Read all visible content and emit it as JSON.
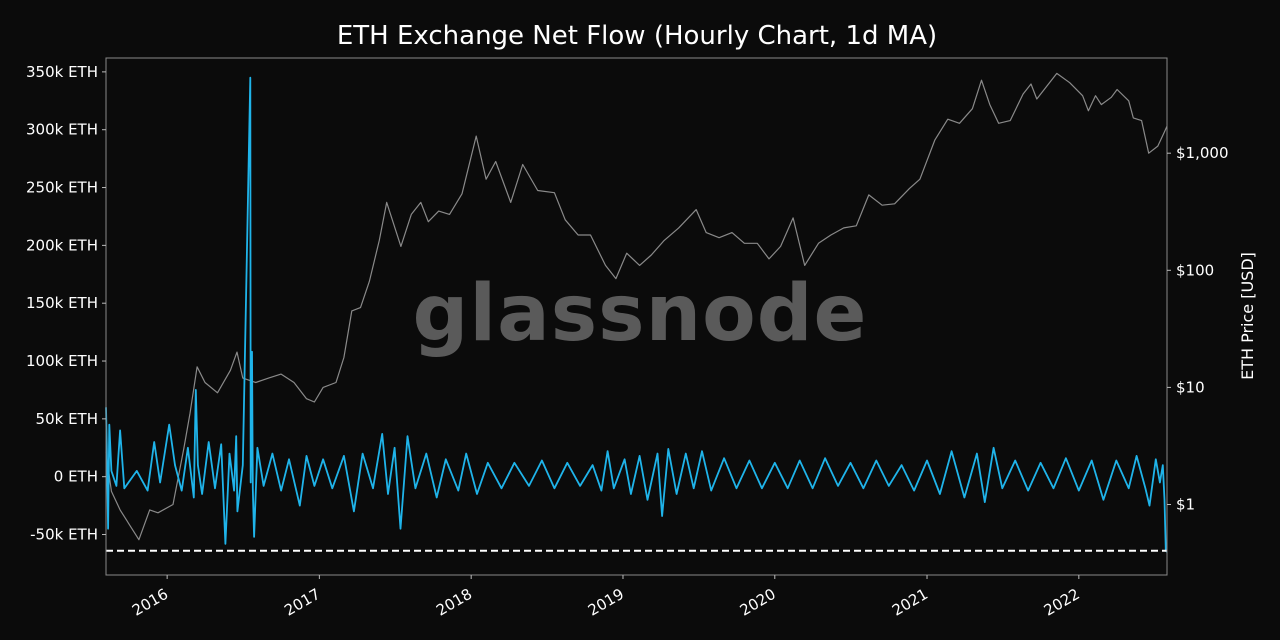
{
  "chart_data": {
    "type": "line",
    "title": "ETH Exchange Net Flow (Hourly Chart, 1d MA)",
    "watermark": "glassnode",
    "left_axis": {
      "ticks": [
        350000,
        300000,
        250000,
        200000,
        150000,
        100000,
        50000,
        0,
        -50000
      ],
      "tick_labels": [
        "350k ETH",
        "300k ETH",
        "250k ETH",
        "200k ETH",
        "150k ETH",
        "100k ETH",
        "50k ETH",
        "0 ETH",
        "-50k ETH"
      ],
      "ylim": [
        -85000,
        362000
      ]
    },
    "right_axis": {
      "label": "ETH Price [USD]",
      "scale": "log",
      "ticks": [
        1,
        10,
        100,
        1000
      ],
      "tick_labels": [
        "$1",
        "$10",
        "$100",
        "$1,000"
      ],
      "ylim": [
        0.25,
        6500
      ]
    },
    "x_axis": {
      "xlim": [
        "2015-08-07",
        "2022-08-01"
      ],
      "ticks": [
        "2016-01-01",
        "2017-01-01",
        "2018-01-01",
        "2019-01-01",
        "2020-01-01",
        "2021-01-01",
        "2022-01-01"
      ],
      "tick_labels": [
        "2016",
        "2017",
        "2018",
        "2019",
        "2020",
        "2021",
        "2022"
      ]
    },
    "reference_line": {
      "value": -64000,
      "style": "dashed",
      "color": "#ffffff"
    },
    "series": [
      {
        "axis": "right",
        "color": "#8a8a8a",
        "points": [
          [
            "2015-08-07",
            2.8
          ],
          [
            "2015-08-20",
            1.3
          ],
          [
            "2015-09-10",
            0.9
          ],
          [
            "2015-10-05",
            0.65
          ],
          [
            "2015-10-25",
            0.5
          ],
          [
            "2015-11-20",
            0.9
          ],
          [
            "2015-12-10",
            0.85
          ],
          [
            "2016-01-15",
            1.0
          ],
          [
            "2016-02-10",
            3.0
          ],
          [
            "2016-02-25",
            6.0
          ],
          [
            "2016-03-13",
            15.0
          ],
          [
            "2016-04-01",
            11.0
          ],
          [
            "2016-05-01",
            9.0
          ],
          [
            "2016-06-01",
            14.0
          ],
          [
            "2016-06-17",
            20.0
          ],
          [
            "2016-07-01",
            12.0
          ],
          [
            "2016-08-01",
            11.0
          ],
          [
            "2016-09-01",
            12.0
          ],
          [
            "2016-10-01",
            13.0
          ],
          [
            "2016-11-01",
            11.0
          ],
          [
            "2016-12-01",
            8.0
          ],
          [
            "2016-12-20",
            7.5
          ],
          [
            "2017-01-10",
            10.0
          ],
          [
            "2017-02-10",
            11.0
          ],
          [
            "2017-03-01",
            18.0
          ],
          [
            "2017-03-20",
            45.0
          ],
          [
            "2017-04-10",
            48.0
          ],
          [
            "2017-05-01",
            80.0
          ],
          [
            "2017-05-25",
            180.0
          ],
          [
            "2017-06-12",
            380.0
          ],
          [
            "2017-07-16",
            160.0
          ],
          [
            "2017-08-10",
            300.0
          ],
          [
            "2017-09-02",
            380.0
          ],
          [
            "2017-09-20",
            260.0
          ],
          [
            "2017-10-15",
            320.0
          ],
          [
            "2017-11-10",
            300.0
          ],
          [
            "2017-12-10",
            450.0
          ],
          [
            "2018-01-13",
            1400.0
          ],
          [
            "2018-02-06",
            600.0
          ],
          [
            "2018-03-01",
            850.0
          ],
          [
            "2018-04-06",
            380.0
          ],
          [
            "2018-05-05",
            800.0
          ],
          [
            "2018-06-10",
            480.0
          ],
          [
            "2018-07-20",
            460.0
          ],
          [
            "2018-08-15",
            270.0
          ],
          [
            "2018-09-15",
            200.0
          ],
          [
            "2018-10-15",
            200.0
          ],
          [
            "2018-11-20",
            110.0
          ],
          [
            "2018-12-15",
            85.0
          ],
          [
            "2019-01-10",
            140.0
          ],
          [
            "2019-02-10",
            110.0
          ],
          [
            "2019-03-10",
            135.0
          ],
          [
            "2019-04-10",
            180.0
          ],
          [
            "2019-05-15",
            230.0
          ],
          [
            "2019-06-26",
            330.0
          ],
          [
            "2019-07-20",
            210.0
          ],
          [
            "2019-08-20",
            190.0
          ],
          [
            "2019-09-20",
            210.0
          ],
          [
            "2019-10-20",
            170.0
          ],
          [
            "2019-11-20",
            170.0
          ],
          [
            "2019-12-18",
            125.0
          ],
          [
            "2020-01-15",
            160.0
          ],
          [
            "2020-02-14",
            280.0
          ],
          [
            "2020-03-13",
            110.0
          ],
          [
            "2020-04-15",
            170.0
          ],
          [
            "2020-05-15",
            200.0
          ],
          [
            "2020-06-15",
            230.0
          ],
          [
            "2020-07-15",
            240.0
          ],
          [
            "2020-08-14",
            440.0
          ],
          [
            "2020-09-15",
            360.0
          ],
          [
            "2020-10-15",
            370.0
          ],
          [
            "2020-11-20",
            500.0
          ],
          [
            "2020-12-15",
            600.0
          ],
          [
            "2021-01-20",
            1300.0
          ],
          [
            "2021-02-20",
            1950.0
          ],
          [
            "2021-03-20",
            1800.0
          ],
          [
            "2021-04-20",
            2400.0
          ],
          [
            "2021-05-12",
            4200.0
          ],
          [
            "2021-06-01",
            2600.0
          ],
          [
            "2021-06-22",
            1800.0
          ],
          [
            "2021-07-20",
            1900.0
          ],
          [
            "2021-08-20",
            3200.0
          ],
          [
            "2021-09-08",
            3900.0
          ],
          [
            "2021-09-22",
            2900.0
          ],
          [
            "2021-11-09",
            4800.0
          ],
          [
            "2021-12-10",
            4000.0
          ],
          [
            "2022-01-10",
            3100.0
          ],
          [
            "2022-01-24",
            2300.0
          ],
          [
            "2022-02-10",
            3100.0
          ],
          [
            "2022-02-24",
            2600.0
          ],
          [
            "2022-03-20",
            3000.0
          ],
          [
            "2022-04-03",
            3500.0
          ],
          [
            "2022-05-01",
            2800.0
          ],
          [
            "2022-05-12",
            2000.0
          ],
          [
            "2022-06-01",
            1900.0
          ],
          [
            "2022-06-18",
            1000.0
          ],
          [
            "2022-07-10",
            1150.0
          ],
          [
            "2022-07-25",
            1500.0
          ],
          [
            "2022-08-01",
            1700.0
          ]
        ]
      },
      {
        "axis": "left",
        "color": "#1fb4ea",
        "points": [
          [
            "2015-08-07",
            60000
          ],
          [
            "2015-08-09",
            25000
          ],
          [
            "2015-08-12",
            -45000
          ],
          [
            "2015-08-15",
            45000
          ],
          [
            "2015-08-20",
            5000
          ],
          [
            "2015-09-01",
            -8000
          ],
          [
            "2015-09-10",
            40000
          ],
          [
            "2015-09-20",
            -10000
          ],
          [
            "2015-10-20",
            5000
          ],
          [
            "2015-11-15",
            -12000
          ],
          [
            "2015-12-01",
            30000
          ],
          [
            "2015-12-15",
            -5000
          ],
          [
            "2016-01-06",
            45000
          ],
          [
            "2016-01-20",
            10000
          ],
          [
            "2016-02-05",
            -12000
          ],
          [
            "2016-02-20",
            25000
          ],
          [
            "2016-03-05",
            -18000
          ],
          [
            "2016-03-10",
            75000
          ],
          [
            "2016-03-15",
            10000
          ],
          [
            "2016-03-25",
            -15000
          ],
          [
            "2016-04-10",
            30000
          ],
          [
            "2016-04-25",
            -10000
          ],
          [
            "2016-05-10",
            28000
          ],
          [
            "2016-05-20",
            -58000
          ],
          [
            "2016-05-30",
            20000
          ],
          [
            "2016-06-10",
            -12000
          ],
          [
            "2016-06-15",
            35000
          ],
          [
            "2016-06-18",
            -30000
          ],
          [
            "2016-07-01",
            10000
          ],
          [
            "2016-07-19",
            345000
          ],
          [
            "2016-07-20",
            -5000
          ],
          [
            "2016-07-23",
            108000
          ],
          [
            "2016-07-25",
            -10000
          ],
          [
            "2016-07-28",
            -52000
          ],
          [
            "2016-08-05",
            25000
          ],
          [
            "2016-08-20",
            -8000
          ],
          [
            "2016-09-10",
            20000
          ],
          [
            "2016-10-01",
            -12000
          ],
          [
            "2016-10-20",
            15000
          ],
          [
            "2016-11-15",
            -25000
          ],
          [
            "2016-12-01",
            18000
          ],
          [
            "2016-12-20",
            -8000
          ],
          [
            "2017-01-10",
            15000
          ],
          [
            "2017-02-01",
            -10000
          ],
          [
            "2017-03-01",
            18000
          ],
          [
            "2017-03-25",
            -30000
          ],
          [
            "2017-04-15",
            20000
          ],
          [
            "2017-05-10",
            -10000
          ],
          [
            "2017-06-01",
            37000
          ],
          [
            "2017-06-15",
            -15000
          ],
          [
            "2017-07-01",
            25000
          ],
          [
            "2017-07-15",
            -45000
          ],
          [
            "2017-08-01",
            35000
          ],
          [
            "2017-08-20",
            -10000
          ],
          [
            "2017-09-15",
            20000
          ],
          [
            "2017-10-10",
            -18000
          ],
          [
            "2017-11-01",
            15000
          ],
          [
            "2017-12-01",
            -12000
          ],
          [
            "2017-12-20",
            20000
          ],
          [
            "2018-01-15",
            -15000
          ],
          [
            "2018-02-10",
            12000
          ],
          [
            "2018-03-15",
            -10000
          ],
          [
            "2018-04-15",
            12000
          ],
          [
            "2018-05-20",
            -8000
          ],
          [
            "2018-06-20",
            14000
          ],
          [
            "2018-07-20",
            -10000
          ],
          [
            "2018-08-20",
            12000
          ],
          [
            "2018-09-20",
            -8000
          ],
          [
            "2018-10-20",
            10000
          ],
          [
            "2018-11-10",
            -12000
          ],
          [
            "2018-11-25",
            22000
          ],
          [
            "2018-12-10",
            -10000
          ],
          [
            "2019-01-05",
            15000
          ],
          [
            "2019-01-20",
            -15000
          ],
          [
            "2019-02-10",
            18000
          ],
          [
            "2019-03-01",
            -20000
          ],
          [
            "2019-03-25",
            20000
          ],
          [
            "2019-04-05",
            -34000
          ],
          [
            "2019-04-20",
            24000
          ],
          [
            "2019-05-10",
            -15000
          ],
          [
            "2019-06-01",
            20000
          ],
          [
            "2019-06-20",
            -10000
          ],
          [
            "2019-07-10",
            22000
          ],
          [
            "2019-08-01",
            -12000
          ],
          [
            "2019-09-01",
            16000
          ],
          [
            "2019-10-01",
            -10000
          ],
          [
            "2019-11-01",
            14000
          ],
          [
            "2019-12-01",
            -10000
          ],
          [
            "2020-01-01",
            12000
          ],
          [
            "2020-02-01",
            -10000
          ],
          [
            "2020-03-01",
            14000
          ],
          [
            "2020-04-01",
            -10000
          ],
          [
            "2020-05-01",
            16000
          ],
          [
            "2020-06-01",
            -8000
          ],
          [
            "2020-07-01",
            12000
          ],
          [
            "2020-08-01",
            -10000
          ],
          [
            "2020-09-01",
            14000
          ],
          [
            "2020-10-01",
            -8000
          ],
          [
            "2020-11-01",
            10000
          ],
          [
            "2020-12-01",
            -12000
          ],
          [
            "2021-01-01",
            14000
          ],
          [
            "2021-02-01",
            -15000
          ],
          [
            "2021-03-01",
            22000
          ],
          [
            "2021-04-01",
            -18000
          ],
          [
            "2021-05-01",
            20000
          ],
          [
            "2021-05-20",
            -22000
          ],
          [
            "2021-06-10",
            25000
          ],
          [
            "2021-07-01",
            -10000
          ],
          [
            "2021-08-01",
            14000
          ],
          [
            "2021-09-01",
            -12000
          ],
          [
            "2021-10-01",
            12000
          ],
          [
            "2021-11-01",
            -10000
          ],
          [
            "2021-12-01",
            16000
          ],
          [
            "2022-01-01",
            -12000
          ],
          [
            "2022-02-01",
            14000
          ],
          [
            "2022-03-01",
            -20000
          ],
          [
            "2022-04-01",
            14000
          ],
          [
            "2022-05-01",
            -10000
          ],
          [
            "2022-05-20",
            18000
          ],
          [
            "2022-06-10",
            -10000
          ],
          [
            "2022-06-20",
            -25000
          ],
          [
            "2022-07-05",
            15000
          ],
          [
            "2022-07-15",
            -5000
          ],
          [
            "2022-07-22",
            10000
          ],
          [
            "2022-07-26",
            -20000
          ],
          [
            "2022-07-29",
            -64000
          ],
          [
            "2022-08-01",
            -65000
          ]
        ]
      }
    ]
  }
}
